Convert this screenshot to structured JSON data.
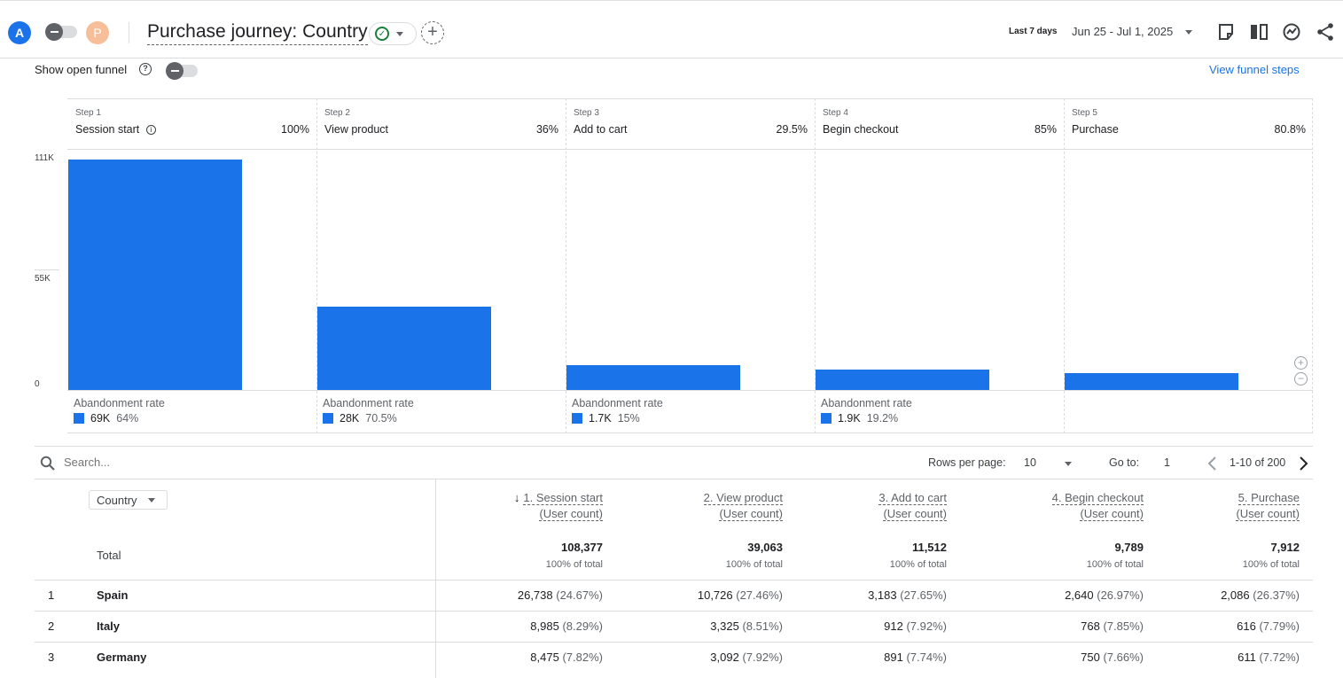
{
  "header": {
    "avatar_a": "A",
    "avatar_p": "P",
    "title": "Purchase journey: Country",
    "date_label": "Last 7 days",
    "date_range": "Jun 25 - Jul 1, 2025",
    "icons": [
      "annotation-icon",
      "compare-icon",
      "insights-icon",
      "share-icon"
    ]
  },
  "controls": {
    "show_open_funnel": "Show open funnel",
    "view_funnel_steps": "View funnel steps"
  },
  "chart_data": {
    "type": "bar",
    "y_ticks": [
      "111K",
      "55K",
      "0"
    ],
    "ylim": [
      0,
      111000
    ],
    "categories": [
      "Session start",
      "View product",
      "Add to cart",
      "Begin checkout",
      "Purchase"
    ],
    "step_numbers": [
      "Step 1",
      "Step 2",
      "Step 3",
      "Step 4",
      "Step 5"
    ],
    "step_pcts": [
      "100%",
      "36%",
      "29.5%",
      "85%",
      "80.8%"
    ],
    "values": [
      108377,
      39063,
      11512,
      9789,
      7912
    ],
    "abandonment_title": "Abandonment rate",
    "abandonment": [
      {
        "count": "69K",
        "rate": "64%"
      },
      {
        "count": "28K",
        "rate": "70.5%"
      },
      {
        "count": "1.7K",
        "rate": "15%"
      },
      {
        "count": "1.9K",
        "rate": "19.2%"
      }
    ],
    "color": "#1a73e8"
  },
  "table_toolbar": {
    "search_placeholder": "Search...",
    "rows_per_page_label": "Rows per page:",
    "rows_per_page": "10",
    "go_to_label": "Go to:",
    "go_to": "1",
    "pagination": "1-10 of 200"
  },
  "table": {
    "dimension": "Country",
    "columns": [
      {
        "line1": "1. Session start",
        "line2": "(User count)",
        "sorted": true
      },
      {
        "line1": "2. View product",
        "line2": "(User count)",
        "sorted": false
      },
      {
        "line1": "3. Add to cart",
        "line2": "(User count)",
        "sorted": false
      },
      {
        "line1": "4. Begin checkout",
        "line2": "(User count)",
        "sorted": false
      },
      {
        "line1": "5. Purchase",
        "line2": "(User count)",
        "sorted": false
      }
    ],
    "total_label": "Total",
    "totals": [
      "108,377",
      "39,063",
      "11,512",
      "9,789",
      "7,912"
    ],
    "total_sub": "100% of total",
    "rows": [
      {
        "idx": "1",
        "country": "Spain",
        "vals": [
          [
            "26,738",
            "(24.67%)"
          ],
          [
            "10,726",
            "(27.46%)"
          ],
          [
            "3,183",
            "(27.65%)"
          ],
          [
            "2,640",
            "(26.97%)"
          ],
          [
            "2,086",
            "(26.37%)"
          ]
        ]
      },
      {
        "idx": "2",
        "country": "Italy",
        "vals": [
          [
            "8,985",
            "(8.29%)"
          ],
          [
            "3,325",
            "(8.51%)"
          ],
          [
            "912",
            "(7.92%)"
          ],
          [
            "768",
            "(7.85%)"
          ],
          [
            "616",
            "(7.79%)"
          ]
        ]
      },
      {
        "idx": "3",
        "country": "Germany",
        "vals": [
          [
            "8,475",
            "(7.82%)"
          ],
          [
            "3,092",
            "(7.92%)"
          ],
          [
            "891",
            "(7.74%)"
          ],
          [
            "750",
            "(7.66%)"
          ],
          [
            "611",
            "(7.72%)"
          ]
        ]
      }
    ]
  }
}
